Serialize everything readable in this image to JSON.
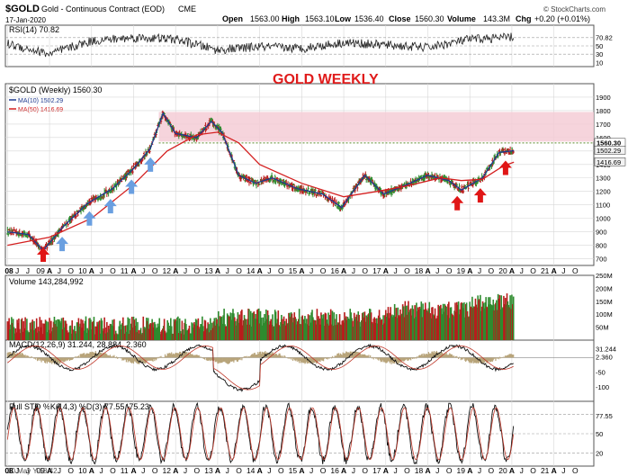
{
  "header": {
    "symbol": "$GOLD",
    "description": "Gold - Continuous Contract (EOD)",
    "exchange": "CME",
    "date": "17-Jan-2020",
    "open_label": "Open",
    "open": "1563.00",
    "high_label": "High",
    "high": "1563.10",
    "low_label": "Low",
    "low": "1536.40",
    "close_label": "Close",
    "close": "1560.30",
    "volume_label": "Volume",
    "volume": "143.3M",
    "chg_label": "Chg",
    "chg": "+0.20 (+0.01%)",
    "watermark": "© StockCharts.com"
  },
  "footer": {
    "note": "30 May Y-18.42"
  },
  "colors": {
    "up_bar": "#2e8b2e",
    "down_bar": "#b81c1c",
    "ma10": "#1f3a8f",
    "ma50": "#d42020",
    "resistance_band": "#f4ccd6",
    "blue_arrow": "#6a9fe0",
    "red_arrow": "#e01616",
    "title_red": "#e01b1b",
    "grid": "#d7d7d7"
  },
  "chart_data": [
    {
      "type": "line",
      "panel": "rsi",
      "label": "RSI(14) 70.82",
      "ylim": [
        0,
        100
      ],
      "y_ticks": [
        "70.82",
        "50",
        "30",
        "10"
      ],
      "x": [
        "08",
        "09",
        "10",
        "11",
        "12",
        "13",
        "14",
        "15",
        "16",
        "17",
        "18",
        "19",
        "20"
      ],
      "values": [
        55,
        30,
        62,
        70,
        66,
        40,
        48,
        44,
        58,
        52,
        46,
        66,
        70.82
      ]
    },
    {
      "type": "line",
      "panel": "price",
      "title": "GOLD WEEKLY",
      "label": "$GOLD (Weekly) 1560.30",
      "ylim": [
        650,
        2000
      ],
      "y_ticks": [
        "1900",
        "1800",
        "1700",
        "1600",
        "1500",
        "1400",
        "1300",
        "1200",
        "1100",
        "1000",
        "900",
        "800",
        "700"
      ],
      "x_ticks": [
        "08",
        "J",
        "J",
        "09",
        "A",
        "J",
        "O",
        "10",
        "A",
        "J",
        "O",
        "11",
        "A",
        "J",
        "O",
        "12",
        "A",
        "J",
        "O",
        "13",
        "A",
        "J",
        "O",
        "14",
        "A",
        "J",
        "O",
        "15",
        "A",
        "J",
        "O",
        "16",
        "A",
        "J",
        "O",
        "17",
        "A",
        "J",
        "O",
        "18",
        "A",
        "J",
        "O",
        "19",
        "A",
        "J",
        "O",
        "20",
        "A",
        "J",
        "O",
        "21",
        "A",
        "J",
        "O"
      ],
      "series": [
        {
          "name": "MA(10)",
          "label": "MA(10) 1502.29",
          "color": "#1f3a8f",
          "x": [
            2008.0,
            2008.5,
            2008.85,
            2009.3,
            2009.9,
            2010.5,
            2011.0,
            2011.4,
            2011.7,
            2012.0,
            2012.5,
            2012.85,
            2013.1,
            2013.5,
            2013.9,
            2014.3,
            2014.9,
            2015.5,
            2015.95,
            2016.5,
            2016.95,
            2017.5,
            2018.0,
            2018.5,
            2018.8,
            2019.3,
            2019.7,
            2020.05
          ],
          "values": [
            900,
            880,
            760,
            930,
            1110,
            1220,
            1370,
            1520,
            1780,
            1630,
            1600,
            1720,
            1640,
            1320,
            1260,
            1300,
            1220,
            1180,
            1080,
            1320,
            1180,
            1250,
            1320,
            1280,
            1210,
            1300,
            1490,
            1502
          ]
        },
        {
          "name": "MA(50)",
          "label": "MA(50) 1416.69",
          "color": "#d42020",
          "x": [
            2008.0,
            2009.0,
            2010.0,
            2011.0,
            2011.8,
            2012.5,
            2013.0,
            2013.5,
            2014.0,
            2015.0,
            2016.0,
            2016.8,
            2017.5,
            2018.3,
            2018.8,
            2019.3,
            2019.8,
            2020.05
          ],
          "values": [
            800,
            860,
            1000,
            1250,
            1500,
            1620,
            1640,
            1560,
            1400,
            1260,
            1160,
            1200,
            1240,
            1300,
            1280,
            1290,
            1390,
            1417
          ]
        }
      ],
      "last_values": [
        "1560.30",
        "1502.29",
        "1416.69"
      ],
      "resistance_zone": [
        1570,
        1790
      ],
      "support_level": 1560,
      "arrows": [
        {
          "x": 2008.85,
          "color": "red"
        },
        {
          "x": 2009.3,
          "color": "blue"
        },
        {
          "x": 2009.95,
          "color": "blue"
        },
        {
          "x": 2010.45,
          "color": "blue"
        },
        {
          "x": 2010.95,
          "color": "blue"
        },
        {
          "x": 2011.4,
          "color": "blue"
        },
        {
          "x": 2018.7,
          "color": "red"
        },
        {
          "x": 2019.25,
          "color": "red"
        },
        {
          "x": 2019.85,
          "color": "red"
        }
      ]
    },
    {
      "type": "bar",
      "panel": "volume",
      "label": "Volume 143,284,992",
      "ylim": [
        0,
        250
      ],
      "y_ticks": [
        "250M",
        "200M",
        "150M",
        "100M",
        "50M"
      ],
      "last_value": "143284992"
    },
    {
      "type": "line",
      "panel": "macd",
      "label": "MACD(12,26,9) 31.244, 28.884, 2.360",
      "ylim": [
        -150,
        60
      ],
      "y_ticks": [
        "31.244",
        "2.360",
        "-50",
        "-100"
      ]
    },
    {
      "type": "line",
      "panel": "full_sto",
      "label": "Full STO %K(14,3) %D(3) 77.55, 75.23",
      "ylim": [
        0,
        100
      ],
      "y_ticks": [
        "77.55",
        "50",
        "20"
      ]
    }
  ]
}
